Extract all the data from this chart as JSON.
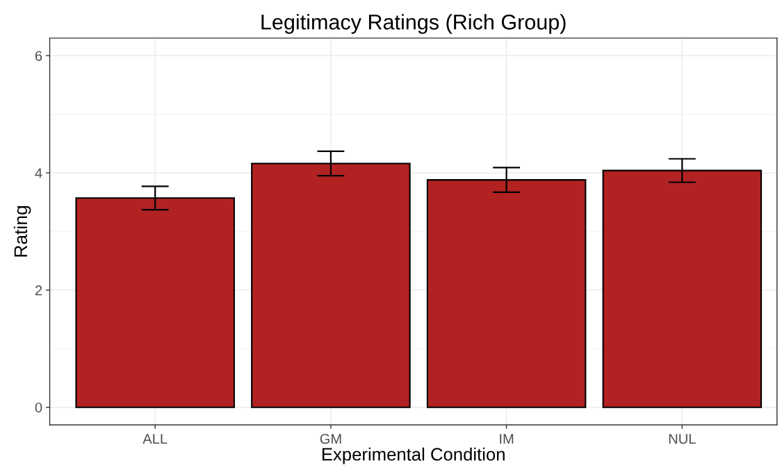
{
  "chart_data": {
    "type": "bar",
    "title": "Legitimacy Ratings (Rich Group)",
    "xlabel": "Experimental Condition",
    "ylabel": "Rating",
    "categories": [
      "ALL",
      "GM",
      "IM",
      "NUL"
    ],
    "values": [
      3.57,
      4.16,
      3.88,
      4.04
    ],
    "errors": [
      0.2,
      0.21,
      0.21,
      0.2
    ],
    "color": "#b22222",
    "ylim": [
      -0.3,
      6.3
    ],
    "yticks": [
      0,
      2,
      4,
      6
    ],
    "grid": true
  }
}
